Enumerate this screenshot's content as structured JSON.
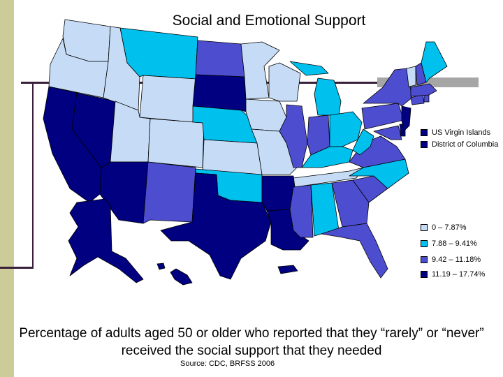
{
  "title": "Social and Emotional Support",
  "colors": {
    "c1": "#c6dcf6",
    "c2": "#00c0ee",
    "c3": "#4d4dcf",
    "c4": "#000080",
    "border": "#000000"
  },
  "legend": {
    "territories": [
      {
        "label": "US Virgin Islands",
        "color": "#000080"
      },
      {
        "label": "District of Columbia",
        "color": "#000080"
      }
    ],
    "ranges": [
      {
        "label": "0 – 7.87%",
        "color": "#c6dcf6"
      },
      {
        "label": "7.88 – 9.41%",
        "color": "#00c0ee"
      },
      {
        "label": "9.42 – 11.18%",
        "color": "#4d4dcf"
      },
      {
        "label": "11.19 – 17.74%",
        "color": "#000080"
      }
    ]
  },
  "caption_line1": "Percentage of adults aged 50 or older who reported that they “rarely” or “never”",
  "caption_line2": "received the social support that they needed",
  "source": "Source:  CDC, BRFSS 2006"
}
